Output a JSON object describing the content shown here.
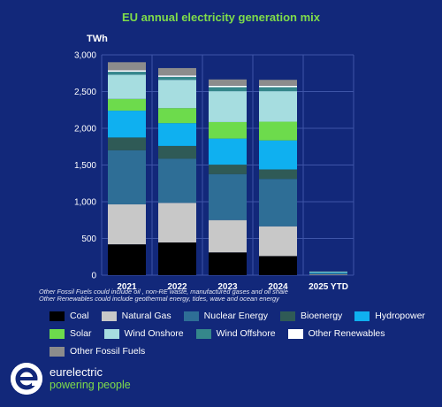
{
  "page": {
    "notes": [
      "Other Fossil Fuels could include oil , non-RE waste, manufactured gases and oil shale",
      "Other Renewables could include geothermal energy, tides, wave and ocean energy"
    ],
    "brand": {
      "name": "eurelectric",
      "tagline": "powering people",
      "logo_letter": "e"
    }
  },
  "chart_data": {
    "type": "bar",
    "stacked": true,
    "title": "EU annual electricity generation mix",
    "ylabel": "TWh",
    "xlabel": "",
    "ylim": [
      0,
      3000
    ],
    "yticks": [
      0,
      500,
      1000,
      1500,
      2000,
      2500,
      3000
    ],
    "ytick_labels": [
      "0",
      "500",
      "1,000",
      "1,500",
      "2,000",
      "2,500",
      "3,000"
    ],
    "grid": true,
    "legend_position": "bottom",
    "categories": [
      "2021",
      "2022",
      "2023",
      "2024",
      "2025 YTD"
    ],
    "series": [
      {
        "name": "Coal",
        "color": "#000000",
        "values": [
          420,
          445,
          310,
          260,
          5
        ]
      },
      {
        "name": "Natural Gas",
        "color": "#c8c8c8",
        "values": [
          545,
          540,
          440,
          405,
          8
        ]
      },
      {
        "name": "Nuclear Energy",
        "color": "#2e6e96",
        "values": [
          735,
          600,
          625,
          645,
          12
        ]
      },
      {
        "name": "Bioenergy",
        "color": "#2f5a56",
        "values": [
          175,
          175,
          130,
          130,
          3
        ]
      },
      {
        "name": "Hydropower",
        "color": "#0fb0f0",
        "values": [
          365,
          310,
          355,
          395,
          8
        ]
      },
      {
        "name": "Solar",
        "color": "#6ddb4c",
        "values": [
          160,
          205,
          225,
          255,
          3
        ]
      },
      {
        "name": "Wind Onshore",
        "color": "#a6dde0",
        "values": [
          330,
          385,
          420,
          415,
          9
        ]
      },
      {
        "name": "Wind Offshore",
        "color": "#35878b",
        "values": [
          40,
          40,
          55,
          55,
          2
        ]
      },
      {
        "name": "Other Renewables",
        "color": "#ffffff",
        "values": [
          20,
          20,
          20,
          20,
          0
        ]
      },
      {
        "name": "Other Fossil Fuels",
        "color": "#8c8c8c",
        "values": [
          110,
          100,
          85,
          80,
          0
        ]
      }
    ]
  }
}
